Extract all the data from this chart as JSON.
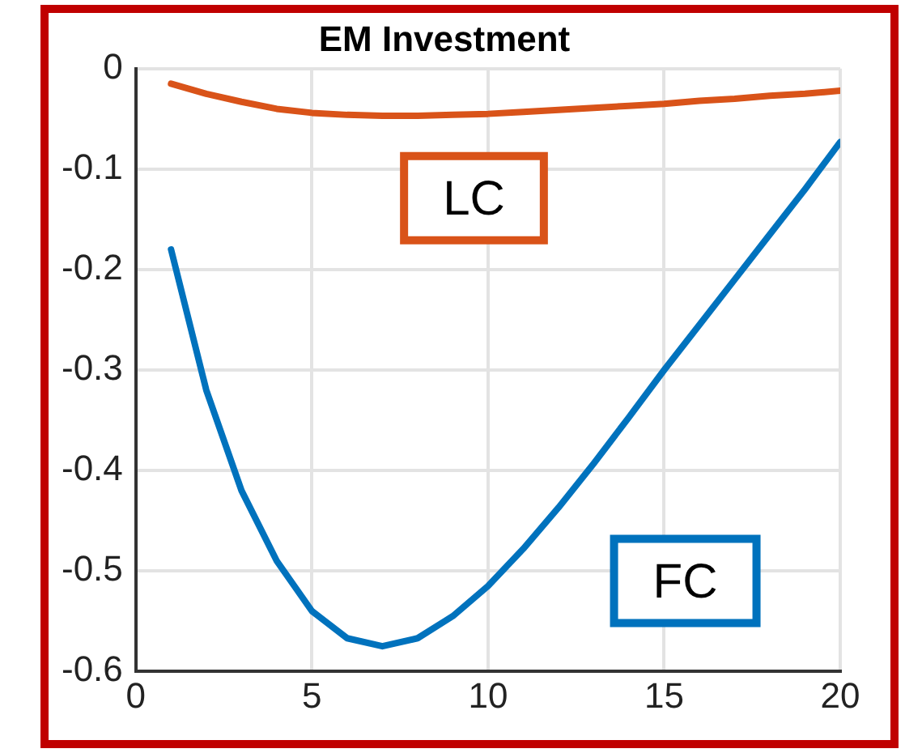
{
  "chart_data": {
    "type": "line",
    "title": "EM Investment",
    "x": [
      1,
      2,
      3,
      4,
      5,
      6,
      7,
      8,
      9,
      10,
      11,
      12,
      13,
      14,
      15,
      16,
      17,
      18,
      19,
      20
    ],
    "series": [
      {
        "name": "LC",
        "color": "#d95319",
        "values": [
          -0.015,
          -0.025,
          -0.033,
          -0.04,
          -0.044,
          -0.046,
          -0.047,
          -0.047,
          -0.046,
          -0.045,
          -0.043,
          -0.041,
          -0.039,
          -0.037,
          -0.035,
          -0.032,
          -0.03,
          -0.027,
          -0.025,
          -0.022
        ]
      },
      {
        "name": "FC",
        "color": "#0072bd",
        "values": [
          -0.18,
          -0.32,
          -0.42,
          -0.49,
          -0.54,
          -0.567,
          -0.575,
          -0.567,
          -0.545,
          -0.515,
          -0.478,
          -0.437,
          -0.393,
          -0.347,
          -0.3,
          -0.255,
          -0.21,
          -0.165,
          -0.12,
          -0.073
        ]
      }
    ],
    "xlim": [
      0,
      20
    ],
    "xticks": [
      0,
      5,
      10,
      15,
      20
    ],
    "ylim": [
      -0.6,
      0
    ],
    "yticks": [
      -0.6,
      -0.5,
      -0.4,
      -0.3,
      -0.2,
      -0.1,
      0
    ],
    "grid": true,
    "legend": false,
    "marker": "none",
    "line_style": "solid"
  }
}
